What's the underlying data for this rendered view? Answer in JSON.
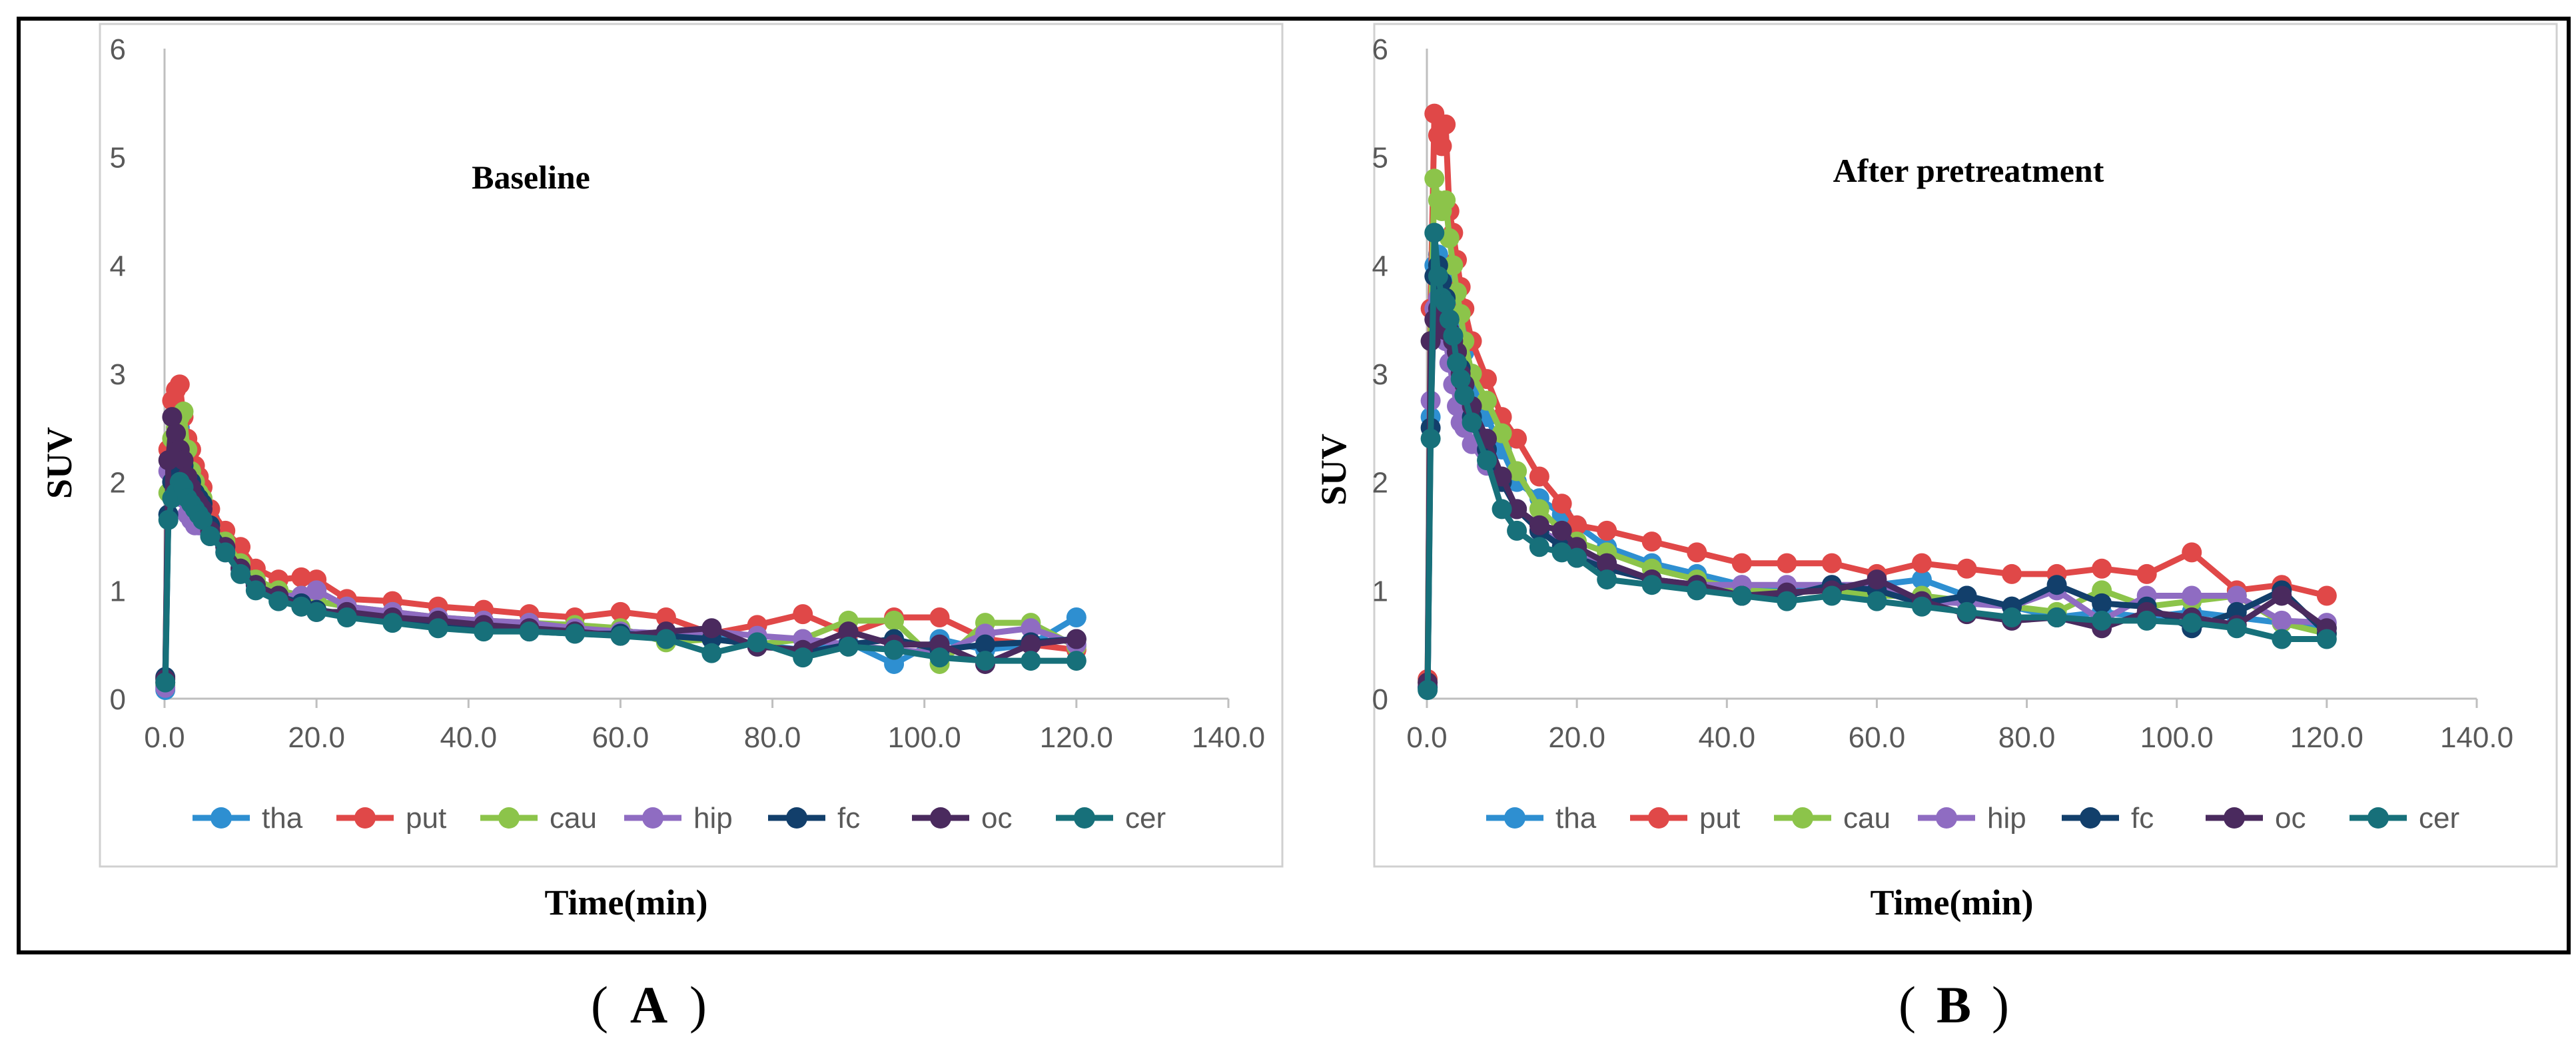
{
  "colors": {
    "tha": "#2e8fd1",
    "put": "#e04848",
    "cau": "#8cc44a",
    "hip": "#8f6cc2",
    "fc": "#123f6b",
    "oc": "#4a2a5e",
    "cer": "#17707a",
    "axis": "#bfbfbf",
    "tick_text": "#595959",
    "frame": "#000000"
  },
  "panel_labels": [
    "A",
    "B"
  ],
  "chart_data": [
    {
      "type": "line",
      "title": "Baseline",
      "xlabel": "Time(min)",
      "ylabel": "SUV",
      "xlim": [
        0,
        140
      ],
      "ylim": [
        0,
        6
      ],
      "xticks": [
        "0.0",
        "20.0",
        "40.0",
        "60.0",
        "80.0",
        "100.0",
        "120.0",
        "140.0"
      ],
      "yticks": [
        "0",
        "1",
        "2",
        "3",
        "4",
        "5",
        "6"
      ],
      "x": [
        0.1,
        0.5,
        1,
        1.5,
        2,
        2.5,
        3,
        3.5,
        4,
        4.5,
        5,
        6,
        8,
        10,
        12,
        15,
        18,
        20,
        24,
        30,
        36,
        42,
        48,
        54,
        60,
        66,
        72,
        78,
        84,
        90,
        96,
        102,
        108,
        114,
        120
      ],
      "legend": [
        "tha",
        "put",
        "cau",
        "hip",
        "fc",
        "oc",
        "cer"
      ],
      "series": [
        {
          "name": "tha",
          "values": [
            0.08,
            1.7,
            2.3,
            2.45,
            2.5,
            2.3,
            2.2,
            2.05,
            1.95,
            1.9,
            1.8,
            1.65,
            1.45,
            1.25,
            1.1,
            1.0,
            0.95,
            0.9,
            0.85,
            0.78,
            0.72,
            0.68,
            0.65,
            0.63,
            0.62,
            0.6,
            0.58,
            0.5,
            0.45,
            0.52,
            0.32,
            0.55,
            0.45,
            0.5,
            0.75
          ]
        },
        {
          "name": "put",
          "values": [
            0.15,
            2.3,
            2.75,
            2.85,
            2.9,
            2.6,
            2.4,
            2.3,
            2.15,
            2.05,
            1.95,
            1.75,
            1.55,
            1.4,
            1.2,
            1.1,
            1.12,
            1.1,
            0.92,
            0.9,
            0.85,
            0.82,
            0.78,
            0.75,
            0.8,
            0.75,
            0.6,
            0.68,
            0.78,
            0.6,
            0.75,
            0.75,
            0.55,
            0.5,
            0.45
          ]
        },
        {
          "name": "cau",
          "values": [
            0.12,
            1.9,
            2.4,
            2.5,
            2.6,
            2.65,
            2.3,
            2.1,
            2.0,
            1.9,
            1.85,
            1.6,
            1.45,
            1.25,
            1.1,
            1.0,
            0.95,
            0.9,
            0.85,
            0.8,
            0.75,
            0.72,
            0.7,
            0.68,
            0.65,
            0.52,
            0.55,
            0.5,
            0.55,
            0.72,
            0.72,
            0.32,
            0.7,
            0.7,
            0.48
          ]
        },
        {
          "name": "hip",
          "values": [
            0.1,
            2.1,
            2.2,
            2.1,
            1.95,
            1.85,
            1.7,
            1.65,
            1.6,
            1.6,
            1.6,
            1.5,
            1.35,
            1.2,
            1.05,
            0.95,
            0.95,
            1.0,
            0.85,
            0.8,
            0.75,
            0.72,
            0.7,
            0.65,
            0.62,
            0.6,
            0.62,
            0.58,
            0.55,
            0.5,
            0.45,
            0.42,
            0.6,
            0.65,
            0.5
          ]
        },
        {
          "name": "fc",
          "values": [
            0.2,
            1.7,
            2.0,
            2.1,
            2.2,
            2.15,
            2.05,
            2.0,
            1.9,
            1.85,
            1.8,
            1.6,
            1.4,
            1.2,
            1.05,
            0.95,
            0.88,
            0.82,
            0.78,
            0.72,
            0.68,
            0.65,
            0.62,
            0.6,
            0.6,
            0.58,
            0.55,
            0.5,
            0.42,
            0.5,
            0.55,
            0.45,
            0.5,
            0.52,
            0.55
          ]
        },
        {
          "name": "oc",
          "values": [
            0.18,
            2.2,
            2.6,
            2.45,
            2.3,
            2.2,
            2.05,
            1.95,
            1.85,
            1.8,
            1.75,
            1.55,
            1.4,
            1.2,
            1.05,
            0.95,
            0.85,
            0.8,
            0.8,
            0.75,
            0.72,
            0.68,
            0.65,
            0.62,
            0.58,
            0.62,
            0.65,
            0.48,
            0.45,
            0.62,
            0.5,
            0.5,
            0.32,
            0.5,
            0.55
          ]
        },
        {
          "name": "cer",
          "values": [
            0.15,
            1.65,
            1.85,
            1.9,
            2.0,
            1.95,
            1.85,
            1.8,
            1.75,
            1.7,
            1.65,
            1.5,
            1.35,
            1.15,
            1.0,
            0.9,
            0.85,
            0.8,
            0.75,
            0.7,
            0.65,
            0.62,
            0.62,
            0.6,
            0.58,
            0.55,
            0.42,
            0.52,
            0.38,
            0.48,
            0.45,
            0.38,
            0.35,
            0.35,
            0.35
          ]
        }
      ]
    },
    {
      "type": "line",
      "title": "After pretreatment",
      "xlabel": "Time(min)",
      "ylabel": "SUV",
      "xlim": [
        0,
        140
      ],
      "ylim": [
        0,
        6
      ],
      "xticks": [
        "0.0",
        "20.0",
        "40.0",
        "60.0",
        "80.0",
        "100.0",
        "120.0",
        "140.0"
      ],
      "yticks": [
        "0",
        "1",
        "2",
        "3",
        "4",
        "5",
        "6"
      ],
      "x": [
        0.1,
        0.5,
        1,
        1.5,
        2,
        2.5,
        3,
        3.5,
        4,
        4.5,
        5,
        6,
        8,
        10,
        12,
        15,
        18,
        20,
        24,
        30,
        36,
        42,
        48,
        54,
        60,
        66,
        72,
        78,
        84,
        90,
        96,
        102,
        108,
        114,
        120
      ],
      "legend": [
        "tha",
        "put",
        "cau",
        "hip",
        "fc",
        "oc",
        "cer"
      ],
      "series": [
        {
          "name": "tha",
          "values": [
            0.1,
            2.6,
            4.0,
            4.1,
            4.0,
            3.9,
            3.8,
            3.6,
            3.4,
            3.3,
            3.2,
            2.9,
            2.6,
            2.3,
            2.0,
            1.85,
            1.7,
            1.6,
            1.4,
            1.25,
            1.15,
            1.05,
            1.0,
            1.0,
            1.05,
            1.1,
            0.95,
            0.85,
            0.75,
            0.8,
            0.75,
            0.8,
            0.75,
            0.7,
            0.65
          ]
        },
        {
          "name": "put",
          "values": [
            0.18,
            3.6,
            5.4,
            5.2,
            5.1,
            5.3,
            4.5,
            4.3,
            4.05,
            3.8,
            3.6,
            3.3,
            2.95,
            2.6,
            2.4,
            2.05,
            1.8,
            1.6,
            1.55,
            1.45,
            1.35,
            1.25,
            1.25,
            1.25,
            1.15,
            1.25,
            1.2,
            1.15,
            1.15,
            1.2,
            1.15,
            1.35,
            1.0,
            1.05,
            0.95
          ]
        },
        {
          "name": "cau",
          "values": [
            0.15,
            3.3,
            4.8,
            4.6,
            4.5,
            4.6,
            4.25,
            4.0,
            3.75,
            3.55,
            3.3,
            3.0,
            2.75,
            2.45,
            2.1,
            1.75,
            1.55,
            1.45,
            1.35,
            1.2,
            1.1,
            1.0,
            0.98,
            1.0,
            0.95,
            0.95,
            0.9,
            0.85,
            0.8,
            1.0,
            0.85,
            0.9,
            0.95,
            0.7,
            0.6
          ]
        },
        {
          "name": "hip",
          "values": [
            0.12,
            2.75,
            3.6,
            3.7,
            3.5,
            3.3,
            3.1,
            2.9,
            2.7,
            2.55,
            2.5,
            2.35,
            2.15,
            2.0,
            1.75,
            1.55,
            1.45,
            1.4,
            1.2,
            1.1,
            1.05,
            1.05,
            1.05,
            1.05,
            1.05,
            0.9,
            0.88,
            0.85,
            1.0,
            0.72,
            0.95,
            0.95,
            0.95,
            0.72,
            0.7
          ]
        },
        {
          "name": "fc",
          "values": [
            0.1,
            2.5,
            3.9,
            4.0,
            3.85,
            3.7,
            3.5,
            3.35,
            3.2,
            3.05,
            2.9,
            2.6,
            2.3,
            2.0,
            1.75,
            1.55,
            1.4,
            1.3,
            1.2,
            1.1,
            1.05,
            0.95,
            0.95,
            1.05,
            1.0,
            0.88,
            0.95,
            0.85,
            1.05,
            0.88,
            0.85,
            0.65,
            0.8,
            1.0,
            0.6
          ]
        },
        {
          "name": "oc",
          "values": [
            0.15,
            3.3,
            3.5,
            3.6,
            3.45,
            3.4,
            3.4,
            3.3,
            3.2,
            3.0,
            2.9,
            2.7,
            2.4,
            2.05,
            1.75,
            1.6,
            1.55,
            1.4,
            1.25,
            1.1,
            1.05,
            0.95,
            0.98,
            1.0,
            1.1,
            0.9,
            0.78,
            0.72,
            0.75,
            0.65,
            0.8,
            0.75,
            0.68,
            0.95,
            0.65
          ]
        },
        {
          "name": "cer",
          "values": [
            0.08,
            2.4,
            4.3,
            3.9,
            3.7,
            3.65,
            3.5,
            3.35,
            3.1,
            2.95,
            2.8,
            2.55,
            2.2,
            1.75,
            1.55,
            1.4,
            1.35,
            1.3,
            1.1,
            1.05,
            1.0,
            0.95,
            0.9,
            0.95,
            0.9,
            0.85,
            0.8,
            0.75,
            0.75,
            0.72,
            0.72,
            0.7,
            0.65,
            0.55,
            0.55
          ]
        }
      ]
    }
  ]
}
